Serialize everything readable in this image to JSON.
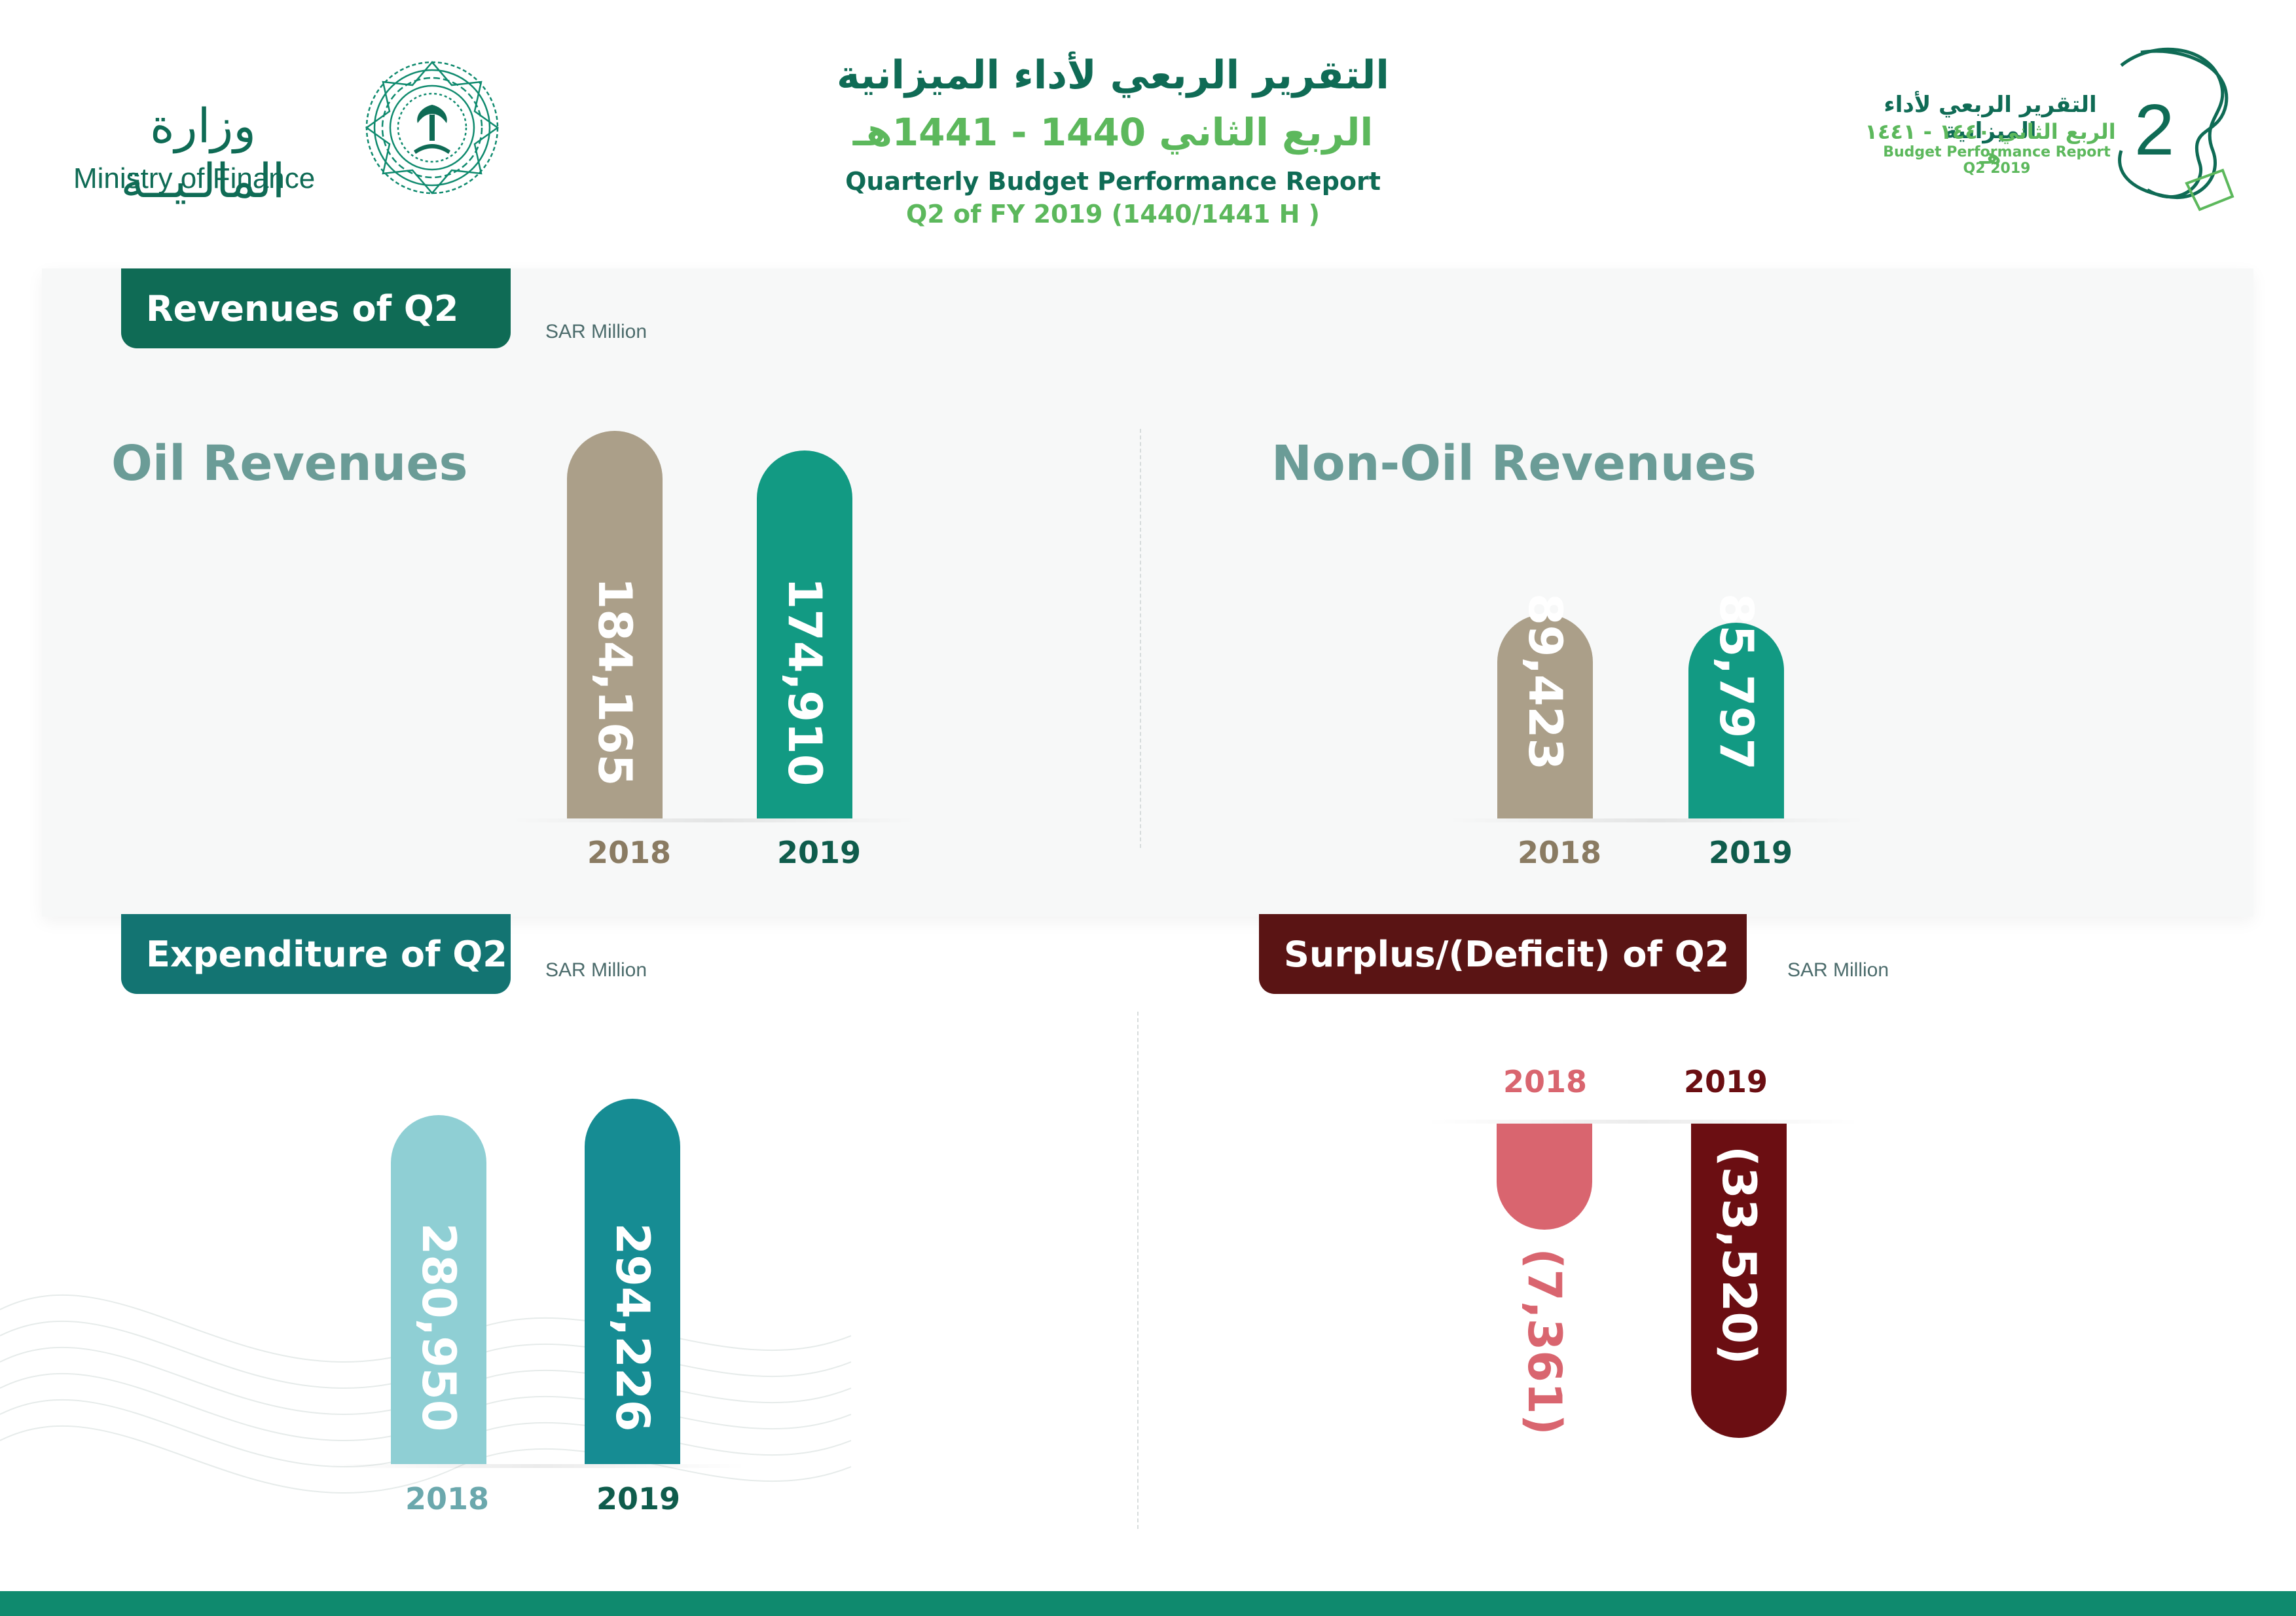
{
  "header": {
    "ministry_ar": "وزارة المالـيــة",
    "ministry_en": "Ministry of Finance",
    "title_ar_line1": "التقرير الربعي لأداء الميزانية",
    "title_ar_line2": "الربع الثاني 1440 - 1441هـ",
    "title_en_line1": "Quarterly Budget Performance Report",
    "title_en_line2": "Q2 of FY 2019 (1440/1441 H )",
    "badge_ar_line1": "التقرير الربعي لأداء الميزانية",
    "badge_ar_line2": "الربع الثاني ١٤٤٠ - ١٤٤١ هـ",
    "badge_en": "Budget Performance Report Q2 2019",
    "badge_number": "2"
  },
  "colors": {
    "dark_green": "#0f6b55",
    "teal_dark": "#137472",
    "maroon": "#5a1414",
    "khaki": "#ab9f89",
    "green_teal": "#129a83",
    "light_teal": "#8fcfd4",
    "teal_mid": "#168c93",
    "pink": "#d9656f",
    "deep_red": "#6b0e12",
    "label_green": "#0f5c4c"
  },
  "revenues": {
    "title": "Revenues of Q2",
    "unit": "SAR Million",
    "oil": {
      "title": "Oil Revenues",
      "years": [
        "2018",
        "2019"
      ],
      "labels": [
        "184,165",
        "174,910"
      ]
    },
    "nonoil": {
      "title": "Non-Oil Revenues",
      "years": [
        "2018",
        "2019"
      ],
      "labels": [
        "89,423",
        "85,797"
      ]
    }
  },
  "expenditure": {
    "title": "Expenditure of Q2",
    "unit": "SAR Million",
    "years": [
      "2018",
      "2019"
    ],
    "labels": [
      "280,950",
      "294,226"
    ]
  },
  "surplus": {
    "title": "Surplus/(Deficit) of Q2",
    "unit": "SAR Million",
    "years": [
      "2018",
      "2019"
    ],
    "labels": [
      "(7,361)",
      "(33,520)"
    ]
  },
  "chart_data": [
    {
      "type": "bar",
      "title": "Oil Revenues",
      "categories": [
        "2018",
        "2019"
      ],
      "values": [
        184165,
        174910
      ],
      "ylabel": "SAR Million"
    },
    {
      "type": "bar",
      "title": "Non-Oil Revenues",
      "categories": [
        "2018",
        "2019"
      ],
      "values": [
        89423,
        85797
      ],
      "ylabel": "SAR Million"
    },
    {
      "type": "bar",
      "title": "Expenditure of Q2",
      "categories": [
        "2018",
        "2019"
      ],
      "values": [
        280950,
        294226
      ],
      "ylabel": "SAR Million"
    },
    {
      "type": "bar",
      "title": "Surplus/(Deficit) of Q2",
      "categories": [
        "2018",
        "2019"
      ],
      "values": [
        -7361,
        -33520
      ],
      "ylabel": "SAR Million"
    }
  ]
}
